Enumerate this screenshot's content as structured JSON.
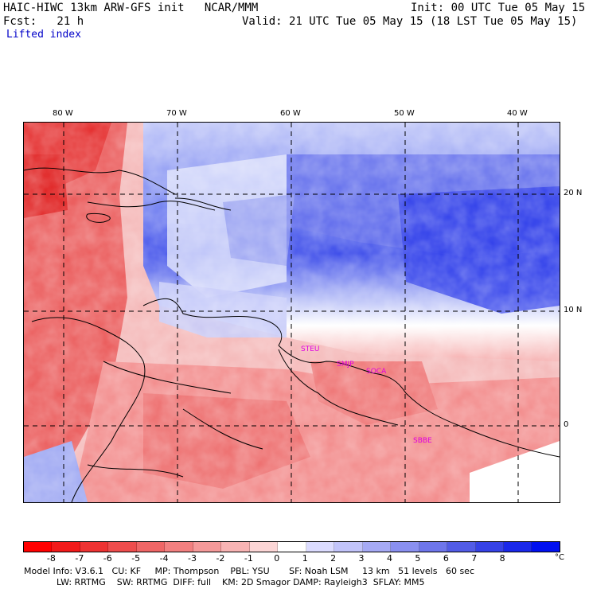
{
  "header": {
    "title_left": "HAIC-HIWC 13km ARW-GFS init   NCAR/MMM",
    "init": "Init: 00 UTC Tue 05 May 15",
    "fcst": "Fcst:   21 h",
    "valid": "Valid: 21 UTC Tue 05 May 15 (18 LST Tue 05 May 15)",
    "field": "Lifted index"
  },
  "map": {
    "lon_labels": [
      "80 W",
      "70 W",
      "60 W",
      "50 W",
      "40 W"
    ],
    "lat_labels": [
      "20 N",
      "10 N",
      "0"
    ],
    "stations": [
      "STEU",
      "SMJP",
      "SOCA",
      "SBBE"
    ],
    "colors": {
      "warm": "#e83030",
      "cool": "#3a4ee0",
      "deep_cool": "#1020e8",
      "neutral": "#ffffff"
    }
  },
  "colorbar": {
    "labels": [
      "-8",
      "-7",
      "-6",
      "-5",
      "-4",
      "-3",
      "-2",
      "-1",
      "0",
      "1",
      "2",
      "3",
      "4",
      "5",
      "6",
      "7",
      "8"
    ],
    "unit": "°C",
    "colors": [
      "#ff0000",
      "#f21a1a",
      "#ee3333",
      "#ee4d4d",
      "#ef6666",
      "#f28080",
      "#f59a9a",
      "#f8b4b4",
      "#fcd6d6",
      "#ffffff",
      "#dcdcff",
      "#c2c4fa",
      "#a6aaf5",
      "#8a90f0",
      "#6e76eb",
      "#525ce6",
      "#3642e6",
      "#1a28ea",
      "#0010f0"
    ]
  },
  "footer": {
    "line1": "Model Info: V3.6.1   CU: KF     MP: Thompson    PBL: YSU       SF: Noah LSM     13 km   51 levels   60 sec",
    "line2": "LW: RRTMG    SW: RRTMG  DIFF: full    KM: 2D Smagor DAMP: Rayleigh3  SFLAY: MM5"
  }
}
